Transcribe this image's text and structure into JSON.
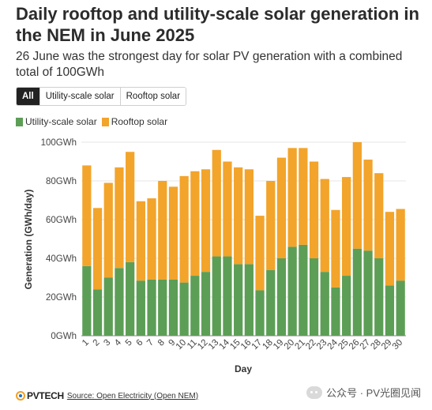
{
  "header": {
    "title": "Daily rooftop and utility-scale solar generation in the NEM in June 2025",
    "subtitle": "26 June was the strongest day for solar PV generation with a combined total of 100GWh"
  },
  "toggle": {
    "buttons": [
      "All",
      "Utility-scale solar",
      "Rooftop solar"
    ],
    "selected": "All"
  },
  "colors": {
    "utility": "#5c9e56",
    "rooftop": "#f2a42b"
  },
  "chart_data": {
    "type": "bar",
    "stacked": true,
    "categories": [
      "1",
      "2",
      "3",
      "4",
      "5",
      "6",
      "7",
      "8",
      "9",
      "10",
      "11",
      "12",
      "13",
      "14",
      "15",
      "16",
      "17",
      "18",
      "19",
      "20",
      "21",
      "22",
      "23",
      "24",
      "25",
      "26",
      "27",
      "28",
      "29",
      "30"
    ],
    "series": [
      {
        "name": "Utility-scale solar",
        "values": [
          36,
          24,
          30,
          35,
          38,
          28.5,
          29,
          29,
          29,
          27.5,
          31,
          33,
          41,
          41,
          37,
          37,
          23.5,
          34,
          40,
          46,
          47,
          40,
          33,
          25,
          31,
          45,
          44,
          40,
          26,
          28.5
        ]
      },
      {
        "name": "Rooftop solar",
        "values": [
          52,
          42,
          49,
          52,
          57,
          41,
          42,
          51,
          48,
          55,
          54,
          53,
          55,
          49,
          50,
          49,
          38.5,
          46,
          52,
          51,
          50,
          50,
          48,
          40,
          51,
          55,
          47,
          44,
          38,
          37
        ]
      }
    ],
    "xlabel": "Day",
    "ylabel": "Generation (GWh/day)",
    "ylim": [
      0,
      100
    ],
    "yticks": [
      "0GWh",
      "20GWh",
      "40GWh",
      "60GWh",
      "80GWh",
      "100GWh"
    ],
    "legend": "top-left",
    "grid": true
  },
  "footer": {
    "logo_text": "PVTECH",
    "source": "Source: Open Electricity (Open NEM)"
  },
  "watermark": {
    "text": "公众号 · PV光圈见闻"
  }
}
